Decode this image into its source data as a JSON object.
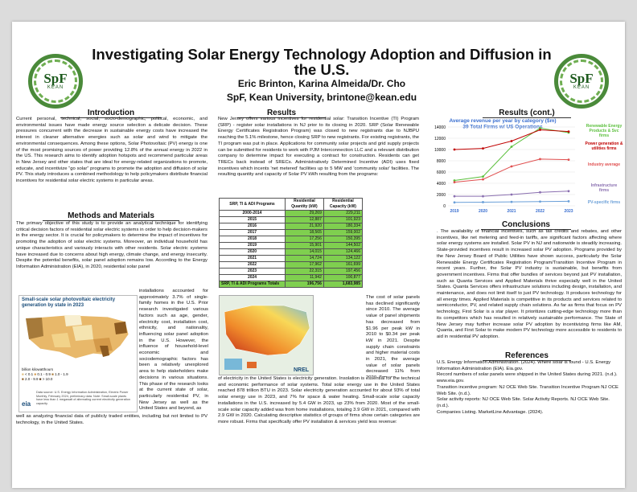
{
  "logo_text": "SpF",
  "logo_sub": "KEAN",
  "title": "Investigating Solar Energy Technology Adoption and Diffusion in the U.S.",
  "authors": "Eric Brinton, Karina Almeida/Dr. Cho",
  "affiliation": "SpF, Kean University, brintone@kean.edu",
  "sections": {
    "intro": "Introduction",
    "methods": "Methods and Materials",
    "results": "Results",
    "results_cont": "Results (cont.)",
    "conclusions": "Conclusions",
    "references": "References"
  },
  "intro_text": "Current personal, technical, social, socio-demographic, political, economic, and environmental issues have made energy source selection a delicate decision. These pressures concurrent with the decrease in sustainable energy costs have increased the interest in cleaner alternative energies such as solar and wind to mitigate the environmental consequences. Among these options, Solar Photovoltaic (PV) energy is one of the most promising sources of power providing 12.8% of the annual energy in 2022 in the US. This research aims to identify adoption hotspots and recommend particular areas in New Jersey and other states that are ideal for energy-related organizations to promote, educate, and incentivize “go solar” programs to promote the adoption and diffusion of solar PV. This study introduces a combined methodology to help policymakers distribute financial incentives for residential solar electric systems in particular areas.",
  "methods_text_top": "The primary objective of this study is to provide an analytical technique for identifying critical decision factors of residential solar electric systems in order to help decision-makers in the energy sector. It is crucial for policymakers to determine the impact of incentives for promoting the adoption of solar electric systems. Moreover, an individual household has unique characteristics and variously interacts with other residents. Solar electric systems have increased due to concerns about high energy, climate change, and energy insecurity. Despite the potential benefits, solar panel adoption remains low. According to the Energy Information Administration (EIA), in 2020, residential solar panel",
  "methods_text_side": "installations accounted for approximately 3.7% of single-family homes in the U.S. Prior research investigated various factors such as age, gender, electricity cost, installation cost, ethnicity, and nationality, influencing solar panel adoption in the U.S. However, the influence of household-level economic and sociodemographic factors has been a relatively unexplored area to help stakeholders make decisions in various situations. This phase of the research looks at the current state of solar, particularly residential PV, in New Jersey as well as the United States and beyond, as",
  "methods_text_bottom": "well as analyzing financial data of publicly traded entities, including but not limited to PV technology, in the United States.",
  "map_figure": {
    "title": "Small-scale solar photovoltaic electricity generation by state in 2023",
    "legend_title": "billion kilowatthours",
    "legend": [
      "< 0.1",
      "0.1 - 0.9",
      "1.0 - 1.9",
      "2.0 - 9.9",
      "> 10.0"
    ],
    "source": "Data source: U.S. Energy Information Administration, Electric Power Monthly, February 2024, preliminary data. Note: Small-scale plants have less than 1 megawatt of alternating current electricity generation capacity.",
    "brand": "eia"
  },
  "results_text_top": "New Jersey offers various incentives for residential solar: Transition Incentive (TI) Program (SRP) - register solar installations in NJ prior to its closing in 2020. SRP (Solar Renewable Energy Certificates Registration Program) was closed to new registrants due to NJBPU reaching the 5.1% milestone, hence closing SRP to new registrants. For existing registrants, the TI program was put in place. Applications for community solar projects and grid supply projects can be submitted for residents to work with PJM Interconnection LLC and a relevant distribution company to determine impact for executing a contract for construction. Residents can get TRECs back instead of SRECs. Administratively Determined Incentive (ADI) uses fixed incentives which incents 'net metered' facilities up to 5 MW and 'community solar' facilities. The resulting quantity and capacity of Solar PV kWh resulting from the programs:",
  "table": {
    "headers": [
      "SRP, TI & ADI Programs",
      "Residential Quantity (kW)",
      "Residential Capacity (kW)"
    ],
    "rows": [
      [
        "2000-2014",
        "29,269",
        "229,211"
      ],
      [
        "2015",
        "12,887",
        "101,923"
      ],
      [
        "2016",
        "21,920",
        "180,334"
      ],
      [
        "2017",
        "18,565",
        "159,002"
      ],
      [
        "2018",
        "17,256",
        "150,395"
      ],
      [
        "2019",
        "15,901",
        "144,502"
      ],
      [
        "2020",
        "14,015",
        "124,466"
      ],
      [
        "2021",
        "14,724",
        "134,122"
      ],
      [
        "2022",
        "17,962",
        "161,699"
      ],
      [
        "2023",
        "22,315",
        "197,456"
      ],
      [
        "2024",
        "11,942",
        "100,877"
      ]
    ],
    "total": [
      "SRP, TI & ADI Programs Totals",
      "196,756",
      "1,683,985"
    ]
  },
  "results_text_side": "The cost of solar panels has declined significantly since 2010. The average value of panel shipments has decreased from $1.96 per peak kW in 2010 to $0.34 per peak kW in 2021. Despite supply chain constraints and higher material costs in 2021, the average value of solar panels decreased 11% from 2020. Top use",
  "results_text_bottom": "of electricity in the United States is electricity generation. Insolation is essential for the technical and economic performance of solar systems. Total solar energy use in the United States reached 878 trillion BTU in 2023. Solar electricity generation accounted for about 93% of total solar energy use in 2023, and 7% for space & water heating. Small-scale solar capacity installations in the U.S. increased by 5.4 GW in 2023, up 23% from 2020. Most of the small-scale solar capacity added was from home installations, totaling 3.9 GW in 2021, compared with 2.9 GW in 2020. Calculating descriptive statistics of groups of firms show certain categories are more robust. Firms that specifically offer PV installation & services yield less revenue:",
  "nrel_brand": "NREL",
  "chart_data": {
    "type": "line",
    "title": "Average revenue per year by category ($m) 39 Total Firms w/ US Operations",
    "x": [
      "2019",
      "2020",
      "2021",
      "2022",
      "2023"
    ],
    "ylim": [
      0,
      14000
    ],
    "yticks": [
      0,
      2000,
      4000,
      6000,
      8000,
      10000,
      12000,
      14000
    ],
    "series": [
      {
        "name": "Renewable Energy Products & Svc firms",
        "color": "#5bbf3c",
        "values": [
          4500,
          5200,
          10500,
          13800,
          13000
        ]
      },
      {
        "name": "Power generation & utilities firms",
        "color": "#c00000",
        "values": [
          10000,
          10200,
          11500,
          13500,
          13200
        ]
      },
      {
        "name": "Industry average",
        "color": "#e05050",
        "values": [
          4200,
          4700,
          7000,
          8300,
          8200
        ]
      },
      {
        "name": "Infrastructure firms",
        "color": "#8a6fb0",
        "values": [
          1700,
          1700,
          2000,
          2400,
          2600
        ]
      },
      {
        "name": "PV-specific firms",
        "color": "#6a9fd8",
        "values": [
          600,
          650,
          700,
          750,
          800
        ]
      }
    ]
  },
  "conclusions_text": ". The availability of financial incentives, such as tax credits and rebates, and other incentives, like net metering and feed-in tariffs, are significant factors affecting where solar energy systems are installed. Solar PV in NJ and nationwide is steadily increasing. State-provided incentives result in increased solar PV adoption. Programs provided by the New Jersey Board of Public Utilities have shown success, particularly the Solar Renewable Energy Certificates Registration Program/Transition Incentive Program in recent years. Further, the Solar PV industry is sustainable, but benefits from government incentives. Firms that offer bundles of services beyond just PV installation, such as Quanta Services and Applied Materials thrive especially well in the United States. Quanta Services offers infrastructure solutions including design, installation, and maintenance, and does not limit itself to just PV technology. It produces technology for all energy times. Applied Materials is competitive in its products and services related to semiconductor, PV, and related supply chain solutions. As far as firms that focus on PV technology, First Solar is a star player. It prioritizes cutting-edge technology more than its competitors which has resulted in relatively sustainable performance. The State of New Jersey may further increase solar PV adoption by incentivizing firms like AM, Quanta, and First Solar to make modern PV technology more accessible to residents to aid in residential PV adoption.",
  "references": [
    "U.S. Energy Information Administration. (2024). Where solar is found - U.S. Energy Information Administration (EIA). Eia.gov.",
    "Record numbers of solar panels were shipped in the United States during 2021. (n.d.). www.eia.gov.",
    "Transition incentive program: NJ OCE Web Site. Transition Incentive Program NJ OCE Web Site. (n.d.).",
    "Solar activity reports: NJ OCE Web Site. Solar Activity Reports. NJ OCE Web Site. (n.d.).",
    "Companies Listing. MarketLine Advantage. (2024)."
  ]
}
